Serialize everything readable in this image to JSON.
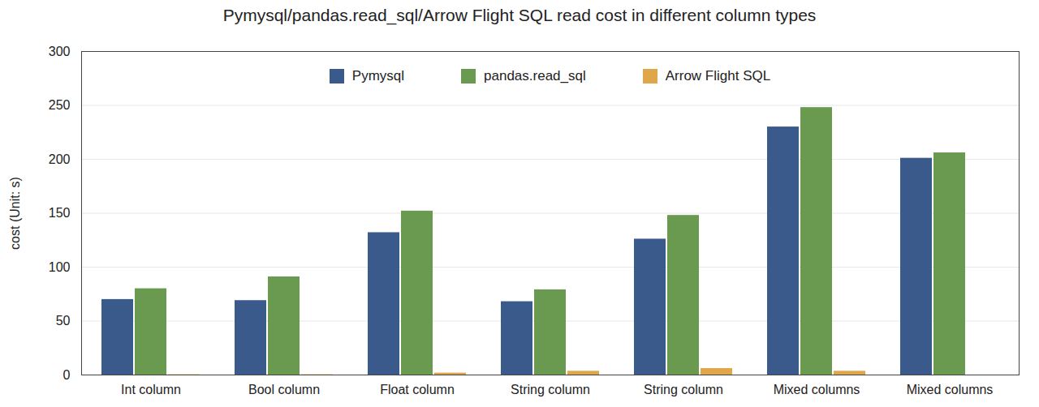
{
  "chart_data": {
    "type": "bar",
    "title": "Pymysql/pandas.read_sql/Arrow Flight SQL read cost in different column types",
    "y_label": "cost (Unit: s)",
    "categories": [
      "Int column",
      "Bool column",
      "Float column",
      "String column",
      "String column",
      "Mixed columns",
      "Mixed columns"
    ],
    "series": [
      {
        "name": "Pymysql",
        "color": "#3a5a8c",
        "values": [
          70,
          69,
          132,
          68,
          126,
          230,
          201
        ]
      },
      {
        "name": "pandas.read_sql",
        "color": "#6a9a50",
        "values": [
          80,
          91,
          152,
          79,
          148,
          248,
          206
        ]
      },
      {
        "name": "Arrow Flight SQL",
        "color": "#e0a64a",
        "values": [
          0.3,
          0.3,
          1.8,
          3.5,
          6,
          3.5,
          null
        ]
      }
    ],
    "ylim": [
      0,
      300
    ],
    "yticks": [
      0,
      50,
      100,
      150,
      200,
      250,
      300
    ],
    "grid": true,
    "legend": "top"
  }
}
